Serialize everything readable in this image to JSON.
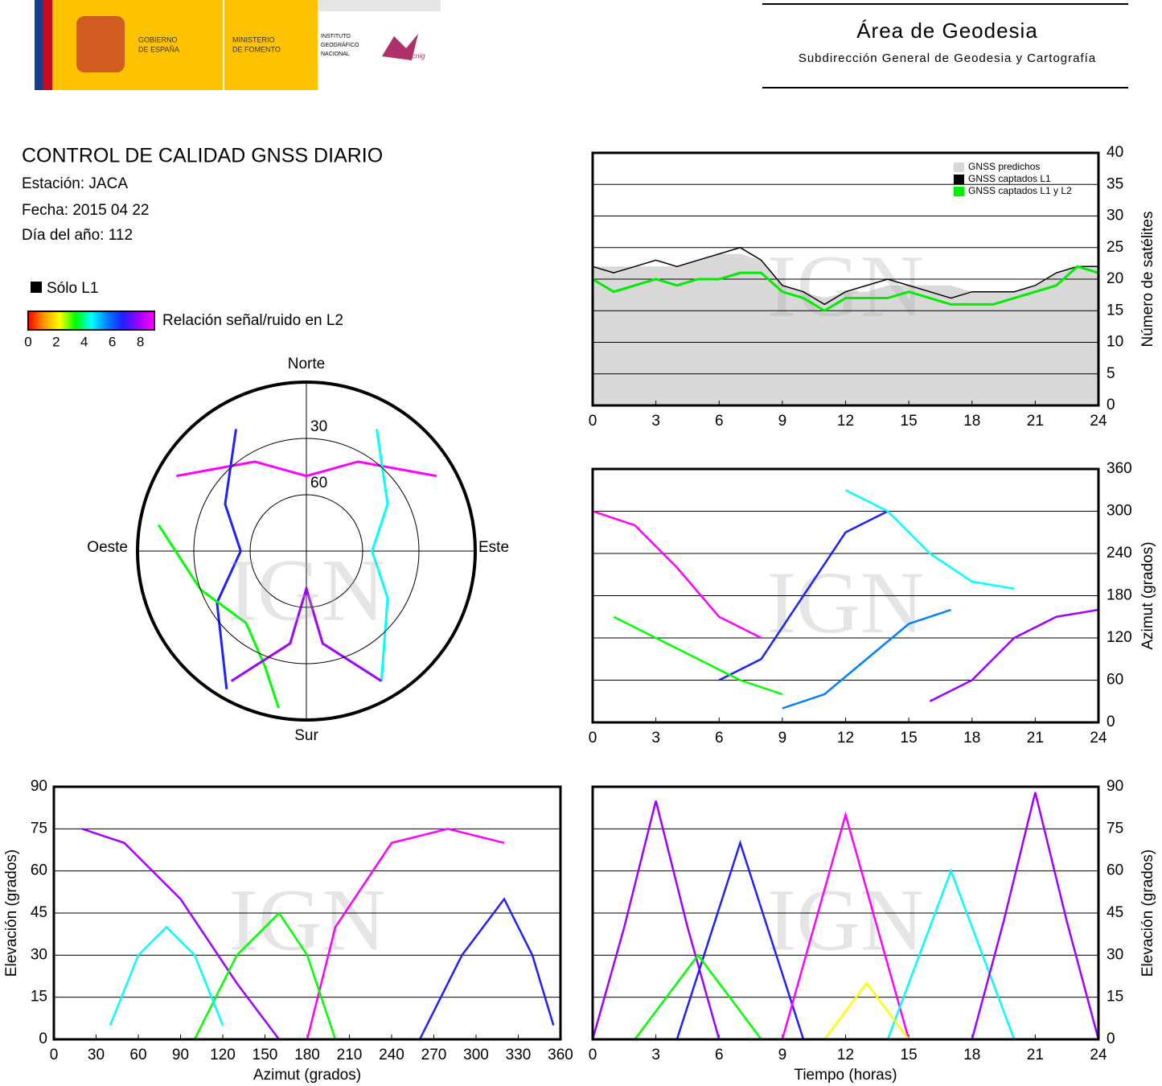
{
  "header": {
    "gov": [
      "GOBIERNO",
      "DE ESPAÑA"
    ],
    "ministry": [
      "MINISTERIO",
      "DE FOMENTO"
    ],
    "institute": [
      "INSTITUTO",
      "GEOGRÁFICO",
      "NACIONAL"
    ],
    "cnig": "cnig",
    "area": "Área de Geodesia",
    "subdireccion": "Subdirección General de Geodesia y Cartografía"
  },
  "report": {
    "title": "CONTROL DE CALIDAD GNSS DIARIO",
    "station": "Estación: JACA",
    "date": "Fecha: 2015 04 22",
    "doy": "Día del año: 112"
  },
  "legend": {
    "l1_only": "Sólo L1",
    "snr_label": "Relación señal/ruido en L2",
    "snr_range": [
      0,
      9
    ],
    "snr_ticks": [
      0,
      2,
      4,
      6,
      8
    ],
    "colorscale": [
      "#ff0000",
      "#ff9900",
      "#ffff00",
      "#00ff00",
      "#00ffff",
      "#0080ff",
      "#2020ff",
      "#a000ff",
      "#ff00ff"
    ]
  },
  "watermark": "IGN",
  "chart_data": [
    {
      "type": "polar",
      "directions": [
        "Norte",
        "Este",
        "Sur",
        "Oeste"
      ],
      "rlim": [
        90,
        0
      ],
      "rticks": [
        30,
        60
      ],
      "tracks": [
        {
          "color": "#ff00ff",
          "az": [
            300,
            330,
            0,
            30,
            60
          ],
          "elev": [
            10,
            35,
            50,
            35,
            10
          ]
        },
        {
          "color": "#2020ff",
          "az": [
            210,
            240,
            270,
            300,
            330
          ],
          "elev": [
            5,
            35,
            55,
            40,
            15
          ]
        },
        {
          "color": "#00ffff",
          "az": [
            30,
            60,
            90,
            120,
            150
          ],
          "elev": [
            15,
            40,
            55,
            40,
            10
          ]
        },
        {
          "color": "#00ff00",
          "az": [
            190,
            200,
            220,
            250,
            280
          ],
          "elev": [
            5,
            25,
            40,
            30,
            10
          ]
        },
        {
          "color": "#a000ff",
          "az": [
            150,
            170,
            180,
            190,
            210
          ],
          "elev": [
            10,
            40,
            70,
            40,
            10
          ]
        }
      ]
    },
    {
      "type": "line",
      "ylabel": "Número de satélites",
      "y_axis_side": "right",
      "grid": true,
      "legend": "upper right",
      "xlim": [
        0,
        24
      ],
      "xticks": [
        0,
        3,
        6,
        9,
        12,
        15,
        18,
        21,
        24
      ],
      "ylim": [
        0,
        40
      ],
      "yticks": [
        0,
        5,
        10,
        15,
        20,
        25,
        30,
        35,
        40
      ],
      "x": [
        0,
        1,
        2,
        3,
        4,
        5,
        6,
        7,
        8,
        9,
        10,
        11,
        12,
        13,
        14,
        15,
        16,
        17,
        18,
        19,
        20,
        21,
        22,
        23,
        24
      ],
      "series": [
        {
          "name": "GNSS predichos",
          "color": "#d9d9d9",
          "area": true,
          "values": [
            22,
            22,
            22,
            22,
            22,
            23,
            24,
            24,
            23,
            19,
            18,
            17,
            18,
            18,
            19,
            19,
            19,
            19,
            18,
            18,
            18,
            19,
            21,
            22,
            22
          ]
        },
        {
          "name": "GNSS captados L1",
          "color": "#000000",
          "values": [
            22,
            21,
            22,
            23,
            22,
            23,
            24,
            25,
            23,
            19,
            18,
            16,
            18,
            19,
            20,
            19,
            18,
            17,
            18,
            18,
            18,
            19,
            21,
            22,
            22
          ]
        },
        {
          "name": "GNSS captados L1 y L2",
          "color": "#00ee00",
          "values": [
            20,
            18,
            19,
            20,
            19,
            20,
            20,
            21,
            21,
            18,
            17,
            15,
            17,
            17,
            17,
            18,
            17,
            16,
            16,
            16,
            17,
            18,
            19,
            22,
            21
          ]
        }
      ]
    },
    {
      "type": "tracks",
      "ylabel": "Azimut (grados)",
      "y_axis_side": "right",
      "grid": true,
      "xlim": [
        0,
        24
      ],
      "xticks": [
        0,
        3,
        6,
        9,
        12,
        15,
        18,
        21,
        24
      ],
      "ylim": [
        0,
        360
      ],
      "yticks": [
        0,
        60,
        120,
        180,
        240,
        300,
        360
      ],
      "tracks": [
        {
          "color": "#ff00ff",
          "x": [
            0,
            2,
            4,
            6,
            8
          ],
          "y": [
            300,
            280,
            220,
            150,
            120
          ]
        },
        {
          "color": "#2020ff",
          "x": [
            6,
            8,
            10,
            12,
            14
          ],
          "y": [
            60,
            90,
            180,
            270,
            300
          ]
        },
        {
          "color": "#00ffff",
          "x": [
            12,
            14,
            16,
            18,
            20
          ],
          "y": [
            330,
            300,
            240,
            200,
            190
          ]
        },
        {
          "color": "#a000ff",
          "x": [
            16,
            18,
            20,
            22,
            24
          ],
          "y": [
            30,
            60,
            120,
            150,
            160
          ]
        },
        {
          "color": "#00ff00",
          "x": [
            1,
            3,
            5,
            7,
            9
          ],
          "y": [
            150,
            120,
            90,
            60,
            40
          ]
        },
        {
          "color": "#0080ff",
          "x": [
            9,
            11,
            13,
            15,
            17
          ],
          "y": [
            20,
            40,
            90,
            140,
            160
          ]
        }
      ]
    },
    {
      "type": "tracks",
      "xlabel": "Azimut (grados)",
      "ylabel": "Elevación (grados)",
      "y_axis_side": "left",
      "grid": true,
      "xlim": [
        0,
        360
      ],
      "xticks": [
        0,
        30,
        60,
        90,
        120,
        150,
        180,
        210,
        240,
        270,
        300,
        330,
        360
      ],
      "ylim": [
        0,
        90
      ],
      "yticks": [
        0,
        15,
        30,
        45,
        60,
        75,
        90
      ],
      "tracks": [
        {
          "color": "#a000ff",
          "x": [
            20,
            50,
            90,
            130,
            160
          ],
          "y": [
            75,
            70,
            50,
            20,
            0
          ]
        },
        {
          "color": "#ff00ff",
          "x": [
            180,
            200,
            240,
            280,
            320
          ],
          "y": [
            0,
            40,
            70,
            75,
            70
          ]
        },
        {
          "color": "#00ff00",
          "x": [
            100,
            130,
            160,
            180,
            200
          ],
          "y": [
            0,
            30,
            45,
            30,
            0
          ]
        },
        {
          "color": "#2020ff",
          "x": [
            260,
            290,
            320,
            340,
            355
          ],
          "y": [
            0,
            30,
            50,
            30,
            5
          ]
        },
        {
          "color": "#00ffff",
          "x": [
            40,
            60,
            80,
            100,
            120
          ],
          "y": [
            5,
            30,
            40,
            30,
            5
          ]
        }
      ]
    },
    {
      "type": "tracks",
      "xlabel": "Tiempo (horas)",
      "ylabel": "Elevación (grados)",
      "y_axis_side": "right",
      "grid": true,
      "xlim": [
        0,
        24
      ],
      "xticks": [
        0,
        3,
        6,
        9,
        12,
        15,
        18,
        21,
        24
      ],
      "ylim": [
        0,
        90
      ],
      "yticks": [
        0,
        15,
        30,
        45,
        60,
        75,
        90
      ],
      "tracks": [
        {
          "color": "#a000ff",
          "x": [
            0,
            1.5,
            3,
            4.5,
            6
          ],
          "y": [
            0,
            40,
            85,
            40,
            0
          ]
        },
        {
          "color": "#2020ff",
          "x": [
            4,
            5.5,
            7,
            8.5,
            10
          ],
          "y": [
            0,
            35,
            70,
            35,
            0
          ]
        },
        {
          "color": "#ff00ff",
          "x": [
            9,
            10.5,
            12,
            13.5,
            15
          ],
          "y": [
            0,
            40,
            80,
            40,
            0
          ]
        },
        {
          "color": "#00ffff",
          "x": [
            14,
            15.5,
            17,
            18.5,
            20
          ],
          "y": [
            0,
            30,
            60,
            30,
            0
          ]
        },
        {
          "color": "#a000ff",
          "x": [
            18,
            19.5,
            21,
            22.5,
            24
          ],
          "y": [
            0,
            42,
            88,
            42,
            0
          ]
        },
        {
          "color": "#00ff00",
          "x": [
            2,
            3.5,
            5,
            6.5,
            8
          ],
          "y": [
            0,
            15,
            30,
            15,
            0
          ]
        },
        {
          "color": "#ffff00",
          "x": [
            11,
            12,
            13,
            14,
            15
          ],
          "y": [
            0,
            10,
            20,
            10,
            0
          ]
        }
      ]
    }
  ]
}
